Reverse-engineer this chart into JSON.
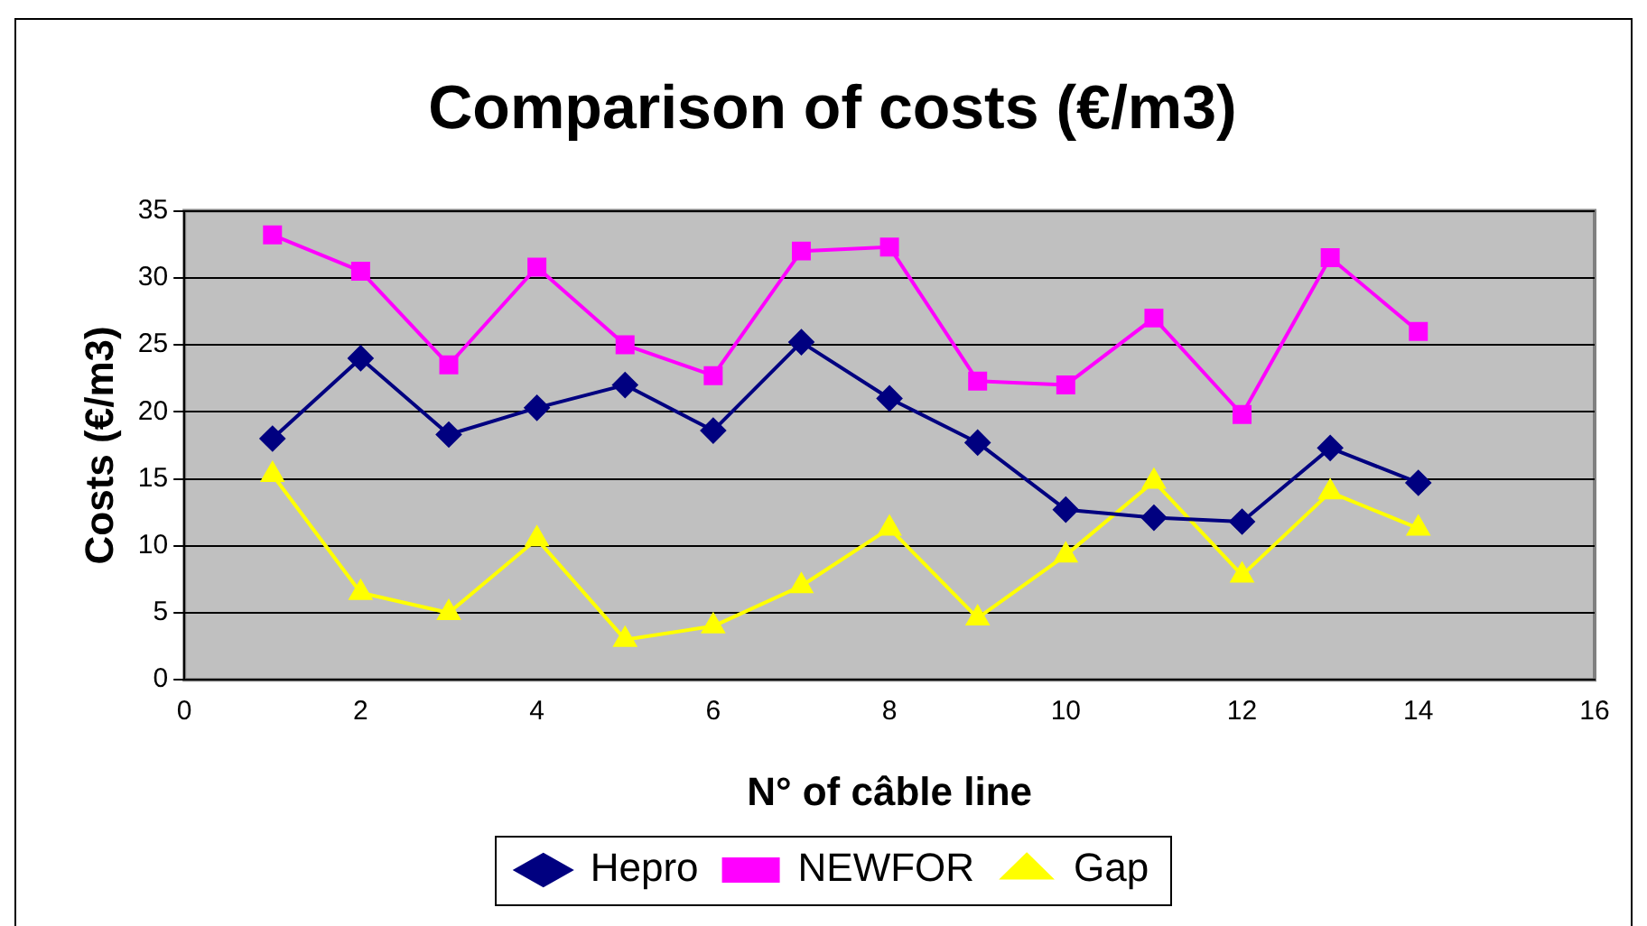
{
  "chart_data": {
    "type": "line",
    "title": "Comparison of costs (€/m3)",
    "xlabel": "N° of câble line",
    "ylabel": "Costs (€/m3)",
    "x": [
      1,
      2,
      3,
      4,
      5,
      6,
      7,
      8,
      9,
      10,
      11,
      12,
      13,
      14
    ],
    "series": [
      {
        "name": "Hepro",
        "color": "#000080",
        "marker": "diamond",
        "values": [
          18,
          24,
          18.3,
          20.3,
          22,
          18.6,
          25.2,
          21,
          17.7,
          12.7,
          12.1,
          11.8,
          17.3,
          14.7
        ]
      },
      {
        "name": "NEWFOR",
        "color": "#ff00ff",
        "marker": "square",
        "values": [
          33.2,
          30.5,
          23.5,
          30.8,
          25,
          22.7,
          32,
          32.3,
          22.3,
          22,
          27,
          19.8,
          31.5,
          26
        ]
      },
      {
        "name": "Gap",
        "color": "#ffff00",
        "marker": "triangle",
        "values": [
          15.3,
          6.5,
          5,
          10.5,
          3,
          4,
          7,
          11.3,
          4.6,
          9.3,
          14.8,
          7.8,
          14,
          11.3
        ]
      }
    ],
    "xlim": [
      0,
      16
    ],
    "xticks": [
      0,
      2,
      4,
      6,
      8,
      10,
      12,
      14,
      16
    ],
    "ylim": [
      0,
      35
    ],
    "yticks": [
      0,
      5,
      10,
      15,
      20,
      25,
      30,
      35
    ],
    "grid": "y",
    "legend": "bottom",
    "line_style": "solid"
  }
}
